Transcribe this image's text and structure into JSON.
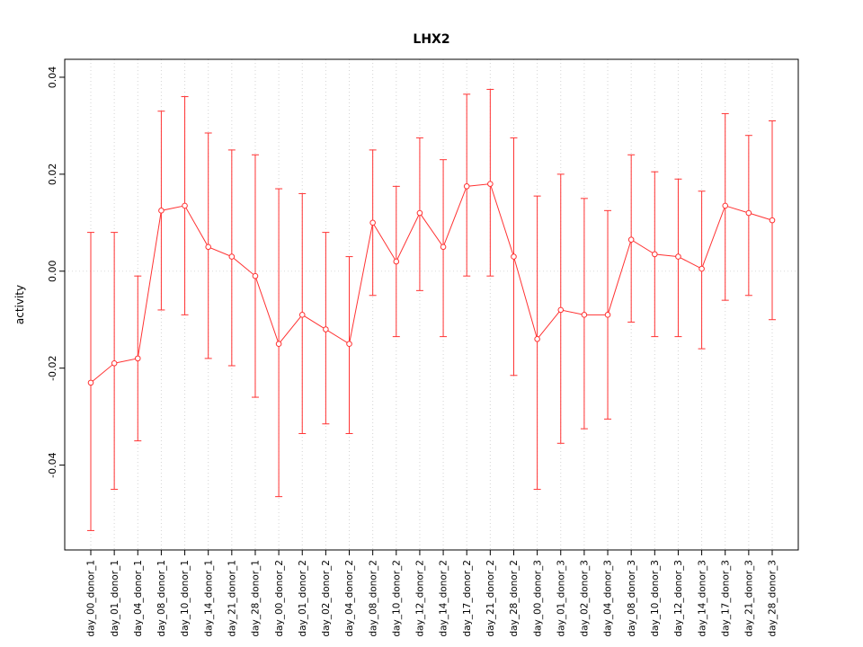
{
  "figure": {
    "title": "LHX2"
  },
  "chart_data": {
    "type": "line",
    "title": "LHX2",
    "xlabel": "",
    "ylabel": "activity",
    "legend": "none",
    "grid": "vertical-dotted",
    "zero_line": true,
    "error_bars": true,
    "point_style": "open-circle",
    "y_ticks": [
      -0.04,
      -0.02,
      0,
      0.02,
      0.04
    ],
    "ylim": [
      -0.0575,
      0.0437
    ],
    "colors": {
      "series": "#ff3333",
      "grid": "#d4d4d4",
      "zero_line": "#dcdcdc",
      "axis": "#000000",
      "background": "#ffffff"
    },
    "categories": [
      "day_00_donor_1",
      "day_01_donor_1",
      "day_04_donor_1",
      "day_08_donor_1",
      "day_10_donor_1",
      "day_14_donor_1",
      "day_21_donor_1",
      "day_28_donor_1",
      "day_00_donor_2",
      "day_01_donor_2",
      "day_02_donor_2",
      "day_04_donor_2",
      "day_08_donor_2",
      "day_10_donor_2",
      "day_12_donor_2",
      "day_14_donor_2",
      "day_17_donor_2",
      "day_21_donor_2",
      "day_28_donor_2",
      "day_00_donor_3",
      "day_01_donor_3",
      "day_02_donor_3",
      "day_04_donor_3",
      "day_08_donor_3",
      "day_10_donor_3",
      "day_12_donor_3",
      "day_14_donor_3",
      "day_17_donor_3",
      "day_21_donor_3",
      "day_28_donor_3"
    ],
    "series": [
      {
        "name": "activity",
        "values": [
          -0.023,
          -0.019,
          -0.018,
          0.0125,
          0.0135,
          0.005,
          0.003,
          -0.001,
          -0.015,
          -0.009,
          -0.012,
          -0.015,
          0.01,
          0.002,
          0.012,
          0.005,
          0.0175,
          0.018,
          0.003,
          -0.014,
          -0.008,
          -0.009,
          -0.009,
          0.0065,
          0.0035,
          0.003,
          0.0005,
          0.0135,
          0.012,
          0.0105
        ],
        "upper": [
          0.008,
          0.008,
          -0.001,
          0.033,
          0.036,
          0.0285,
          0.025,
          0.024,
          0.017,
          0.016,
          0.008,
          0.003,
          0.025,
          0.0175,
          0.0275,
          0.023,
          0.0365,
          0.0375,
          0.0275,
          0.0155,
          0.02,
          0.015,
          0.0125,
          0.024,
          0.0205,
          0.019,
          0.0165,
          0.0325,
          0.028,
          0.031
        ],
        "lower": [
          -0.0535,
          -0.045,
          -0.035,
          -0.008,
          -0.009,
          -0.018,
          -0.0195,
          -0.026,
          -0.0465,
          -0.0335,
          -0.0315,
          -0.0335,
          -0.005,
          -0.0135,
          -0.004,
          -0.0135,
          -0.001,
          -0.001,
          -0.0215,
          -0.045,
          -0.0355,
          -0.0325,
          -0.0305,
          -0.0105,
          -0.0135,
          -0.0135,
          -0.016,
          -0.006,
          -0.005,
          -0.01
        ]
      }
    ]
  }
}
